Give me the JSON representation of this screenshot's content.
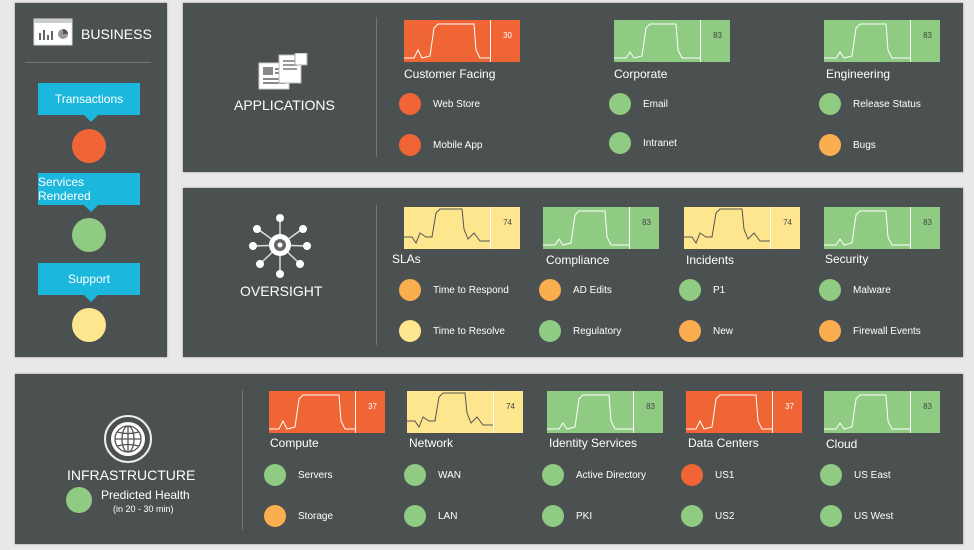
{
  "colors": {
    "red": "#f06535",
    "green": "#8fcb82",
    "yellow": "#fde68e",
    "orange": "#fbae4f",
    "cyan": "#1cb7dd"
  },
  "business": {
    "title": "BUSINESS",
    "items": [
      {
        "label": "Transactions",
        "status": "red"
      },
      {
        "label": "Services Rendered",
        "status": "green"
      },
      {
        "label": "Support",
        "status": "yellow"
      }
    ]
  },
  "applications": {
    "title": "APPLICATIONS",
    "groups": [
      {
        "name": "Customer Facing",
        "value": "30",
        "status": "red",
        "items": [
          {
            "label": "Web Store",
            "status": "red"
          },
          {
            "label": "Mobile App",
            "status": "red"
          }
        ]
      },
      {
        "name": "Corporate",
        "value": "83",
        "status": "green",
        "items": [
          {
            "label": "Email",
            "status": "green"
          },
          {
            "label": "Intranet",
            "status": "green"
          }
        ]
      },
      {
        "name": "Engineering",
        "value": "83",
        "status": "green",
        "items": [
          {
            "label": "Release Status",
            "status": "green"
          },
          {
            "label": "Bugs",
            "status": "orange"
          }
        ]
      }
    ]
  },
  "oversight": {
    "title": "OVERSIGHT",
    "groups": [
      {
        "name": "SLAs",
        "value": "74",
        "status": "yellow",
        "items": [
          {
            "label": "Time to Respond",
            "status": "orange"
          },
          {
            "label": "Time to Resolve",
            "status": "yellow"
          }
        ]
      },
      {
        "name": "Compliance",
        "value": "83",
        "status": "green",
        "items": [
          {
            "label": "AD Edits",
            "status": "orange"
          },
          {
            "label": "Regulatory",
            "status": "green"
          }
        ]
      },
      {
        "name": "Incidents",
        "value": "74",
        "status": "yellow",
        "items": [
          {
            "label": "P1",
            "status": "green"
          },
          {
            "label": "New",
            "status": "orange"
          }
        ]
      },
      {
        "name": "Security",
        "value": "83",
        "status": "green",
        "items": [
          {
            "label": "Malware",
            "status": "green"
          },
          {
            "label": "Firewall Events",
            "status": "orange"
          }
        ]
      }
    ]
  },
  "infrastructure": {
    "title": "INFRASTRUCTURE",
    "predicted_label": "Predicted Health",
    "predicted_sub": "(in 20 - 30 min)",
    "predicted_status": "green",
    "groups": [
      {
        "name": "Compute",
        "value": "37",
        "status": "red",
        "items": [
          {
            "label": "Servers",
            "status": "green"
          },
          {
            "label": "Storage",
            "status": "orange"
          }
        ]
      },
      {
        "name": "Network",
        "value": "74",
        "status": "yellow",
        "items": [
          {
            "label": "WAN",
            "status": "green"
          },
          {
            "label": "LAN",
            "status": "green"
          }
        ]
      },
      {
        "name": "Identity Services",
        "value": "83",
        "status": "green",
        "items": [
          {
            "label": "Active Directory",
            "status": "green"
          },
          {
            "label": "PKI",
            "status": "green"
          }
        ]
      },
      {
        "name": "Data Centers",
        "value": "37",
        "status": "red",
        "items": [
          {
            "label": "US1",
            "status": "red"
          },
          {
            "label": "US2",
            "status": "green"
          }
        ]
      },
      {
        "name": "Cloud",
        "value": "83",
        "status": "green",
        "items": [
          {
            "label": "US East",
            "status": "green"
          },
          {
            "label": "US West",
            "status": "green"
          }
        ]
      }
    ]
  }
}
